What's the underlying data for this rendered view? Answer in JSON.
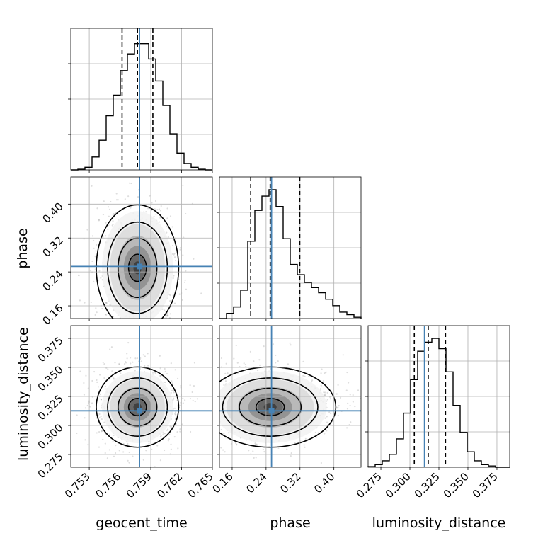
{
  "chart_data": {
    "type": "corner",
    "parameters": [
      "geocent_time",
      "phase",
      "luminosity_distance"
    ],
    "truths": {
      "geocent_time": 0.7579,
      "phase": 0.2529,
      "luminosity_distance": 0.3126
    },
    "quantiles": {
      "geocent_time": [
        0.7562,
        0.7577,
        0.7592
      ],
      "phase": [
        0.2038,
        0.2497,
        0.3195
      ],
      "luminosity_distance": [
        0.3038,
        0.3158,
        0.3307
      ]
    },
    "ranges": {
      "geocent_time": [
        0.7512,
        0.765
      ],
      "phase": [
        0.13,
        0.464
      ],
      "luminosity_distance": [
        0.264,
        0.386
      ]
    },
    "ticks": {
      "geocent_time": [
        "0.753",
        "0.756",
        "0.759",
        "0.762",
        "0.765"
      ],
      "phase": [
        "0.16",
        "0.24",
        "0.32",
        "0.40"
      ],
      "luminosity_distance": [
        "0.275",
        "0.300",
        "0.325",
        "0.350",
        "0.375"
      ]
    },
    "histograms": {
      "geocent_time": [
        0,
        0.005,
        0.02,
        0.1,
        0.23,
        0.42,
        0.58,
        0.77,
        0.9,
        0.98,
        0.98,
        0.86,
        0.69,
        0.5,
        0.28,
        0.13,
        0.05,
        0.02,
        0.005,
        0
      ],
      "phase": [
        0,
        0.04,
        0.09,
        0.22,
        0.6,
        0.84,
        0.95,
        1.0,
        0.87,
        0.62,
        0.42,
        0.34,
        0.28,
        0.24,
        0.2,
        0.15,
        0.1,
        0.05,
        0.03,
        0.01
      ],
      "luminosity_distance": [
        0.005,
        0.02,
        0.05,
        0.1,
        0.22,
        0.42,
        0.68,
        0.9,
        0.97,
        1.0,
        0.92,
        0.74,
        0.48,
        0.27,
        0.12,
        0.05,
        0.02,
        0.01,
        0,
        0
      ]
    },
    "grid": true
  }
}
